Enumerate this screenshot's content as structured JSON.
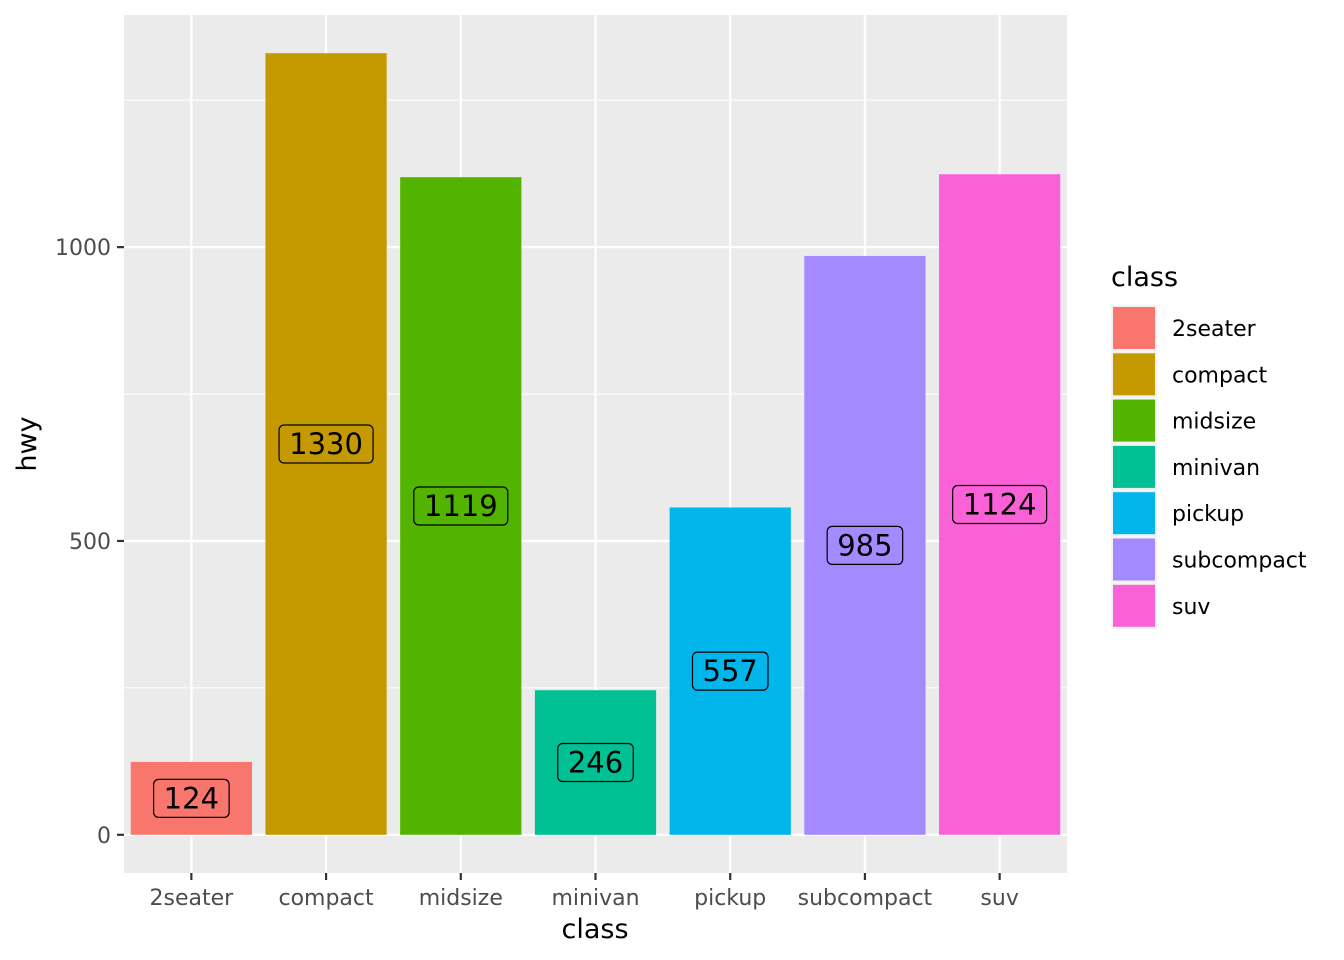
{
  "chart_data": {
    "type": "bar",
    "title": "",
    "xlabel": "class",
    "ylabel": "hwy",
    "categories": [
      "2seater",
      "compact",
      "midsize",
      "minivan",
      "pickup",
      "subcompact",
      "suv"
    ],
    "values": [
      124,
      1330,
      1119,
      246,
      557,
      985,
      1124
    ],
    "data_labels": [
      "124",
      "1330",
      "1119",
      "246",
      "557",
      "985",
      "1124"
    ],
    "colors": [
      "#F8766D",
      "#C49A00",
      "#53B400",
      "#00C094",
      "#00B6EB",
      "#A58AFF",
      "#FB61D7"
    ],
    "ylim": [
      -65,
      1395
    ],
    "y_ticks": [
      0,
      500,
      1000
    ],
    "y_tick_labels": [
      "0",
      "500",
      "1000"
    ],
    "grid": true,
    "panel_background": "#EBEBEB",
    "legend": {
      "title": "class",
      "position": "right",
      "entries": [
        "2seater",
        "compact",
        "midsize",
        "minivan",
        "pickup",
        "subcompact",
        "suv"
      ]
    }
  }
}
